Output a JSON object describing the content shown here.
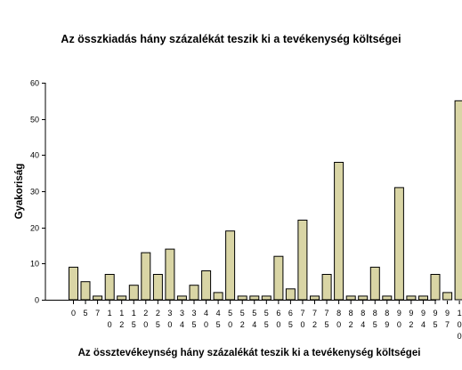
{
  "chart_data": {
    "type": "bar",
    "title": "Az összkiadás hány százalékát teszik ki a tevékenység költségei",
    "xlabel": "Az össztevékeynség hány százalékát teszik ki a tevékenység költségei",
    "ylabel": "Gyakoriság",
    "ylim": [
      0,
      60
    ],
    "yticks": [
      0,
      10,
      20,
      30,
      40,
      50,
      60
    ],
    "grid": false,
    "bar_color": "#d9d5a5",
    "bar_edge": "#000000",
    "categories": [
      "0",
      "5",
      "7",
      "10",
      "12",
      "15",
      "20",
      "25",
      "30",
      "34",
      "35",
      "40",
      "45",
      "50",
      "52",
      "54",
      "55",
      "60",
      "65",
      "70",
      "72",
      "75",
      "80",
      "82",
      "84",
      "85",
      "89",
      "90",
      "92",
      "94",
      "95",
      "97",
      "100"
    ],
    "values": [
      9,
      5,
      1,
      7,
      1,
      4,
      13,
      7,
      14,
      1,
      4,
      8,
      2,
      19,
      1,
      1,
      1,
      12,
      3,
      22,
      1,
      7,
      38,
      1,
      1,
      9,
      1,
      31,
      1,
      1,
      7,
      2,
      55
    ]
  }
}
